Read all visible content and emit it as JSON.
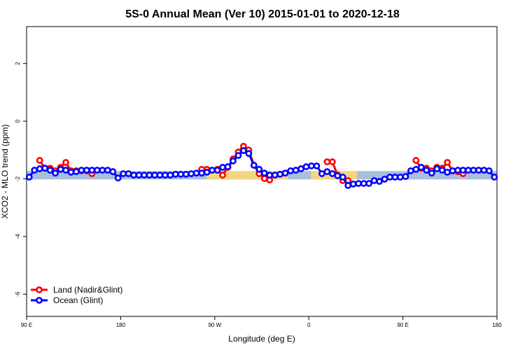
{
  "chart_data": {
    "type": "line",
    "title": "5S-0 Annual Mean (Ver 10)   2015-01-01 to 2020-12-18",
    "x_label": "Longitude (deg E)",
    "y_label": "XCO2 - MLO trend (ppm)",
    "xlim": [
      90,
      540
    ],
    "ylim": [
      -6.77,
      3.28
    ],
    "xticks": [
      {
        "value": 90,
        "label": "90 E"
      },
      180,
      {
        "value": 270,
        "label": "90 W"
      },
      {
        "value": 360,
        "label": "0"
      },
      {
        "value": 450,
        "label": "90 E"
      },
      {
        "value": 540,
        "label": "180"
      }
    ],
    "yticks": [
      -6,
      -4,
      -2,
      0,
      2
    ],
    "legend": "bottomleft",
    "bands": [
      {
        "color": "#a9bfdc",
        "xlim": [
          90,
          540
        ],
        "ylim": [
          -2.02,
          -1.73
        ]
      },
      {
        "color": "#f3d77c",
        "xlim": [
          262,
          340
        ],
        "ylim": [
          -2.02,
          -1.73
        ]
      },
      {
        "color": "#f3d77c",
        "xlim": [
          362,
          406
        ],
        "ylim": [
          -2.02,
          -1.73
        ]
      }
    ],
    "x": [
      92.5,
      97.5,
      102.5,
      107.5,
      112.5,
      117.5,
      122.5,
      127.5,
      132.5,
      137.5,
      142.5,
      147.5,
      152.5,
      157.5,
      162.5,
      167.5,
      172.5,
      177.5,
      182.5,
      187.5,
      192.5,
      197.5,
      202.5,
      207.5,
      212.5,
      217.5,
      222.5,
      227.5,
      232.5,
      237.5,
      242.5,
      247.5,
      252.5,
      257.5,
      262.5,
      267.5,
      272.5,
      277.5,
      282.5,
      287.5,
      292.5,
      297.5,
      302.5,
      307.5,
      312.5,
      317.5,
      322.5,
      327.5,
      332.5,
      337.5,
      342.5,
      347.5,
      352.5,
      357.5,
      362.5,
      367.5,
      372.5,
      377.5,
      382.5,
      387.5,
      392.5,
      397.5,
      402.5,
      407.5,
      412.5,
      417.5,
      422.5,
      427.5,
      432.5,
      437.5,
      442.5,
      447.5,
      452.5,
      457.5,
      462.5,
      467.5,
      472.5,
      477.5,
      482.5,
      487.5,
      492.5,
      497.5,
      502.5,
      507.5,
      512.5,
      517.5,
      522.5,
      527.5,
      532.5,
      537.5
    ],
    "series": [
      {
        "name": "Land (Nadir&Glint)",
        "color": "#ff0000",
        "values": [
          null,
          null,
          -1.36,
          -1.63,
          -1.63,
          -1.72,
          -1.6,
          -1.43,
          -1.72,
          -1.72,
          -1.72,
          -1.72,
          -1.82,
          null,
          null,
          null,
          null,
          null,
          null,
          null,
          null,
          null,
          null,
          null,
          null,
          null,
          null,
          null,
          null,
          null,
          null,
          null,
          null,
          -1.67,
          -1.67,
          -1.7,
          -1.67,
          -1.87,
          -1.6,
          -1.31,
          -1.07,
          -0.87,
          -1.0,
          -1.53,
          -1.82,
          -1.99,
          -2.04,
          null,
          null,
          null,
          null,
          null,
          null,
          null,
          null,
          null,
          null,
          -1.41,
          -1.41,
          -1.87,
          -2.06,
          -2.06,
          null,
          null,
          null,
          null,
          null,
          null,
          null,
          null,
          null,
          null,
          null,
          null,
          -1.36,
          -1.63,
          -1.63,
          -1.72,
          -1.6,
          -1.63,
          -1.43,
          -1.72,
          -1.75,
          -1.82,
          null,
          null,
          null,
          null,
          null,
          null
        ]
      },
      {
        "name": "Ocean (Glint)",
        "color": "#0000ff",
        "values": [
          -1.94,
          -1.7,
          -1.65,
          -1.63,
          -1.7,
          -1.8,
          -1.67,
          -1.7,
          -1.77,
          -1.75,
          -1.7,
          -1.7,
          -1.7,
          -1.7,
          -1.7,
          -1.7,
          -1.75,
          -1.97,
          -1.82,
          -1.82,
          -1.87,
          -1.87,
          -1.87,
          -1.87,
          -1.87,
          -1.87,
          -1.87,
          -1.87,
          -1.84,
          -1.84,
          -1.84,
          -1.82,
          -1.8,
          -1.8,
          -1.77,
          -1.7,
          -1.7,
          -1.6,
          -1.58,
          -1.38,
          -1.19,
          -1.02,
          -1.12,
          -1.53,
          -1.67,
          -1.8,
          -1.87,
          -1.87,
          -1.84,
          -1.8,
          -1.72,
          -1.7,
          -1.65,
          -1.58,
          -1.55,
          -1.55,
          -1.82,
          -1.75,
          -1.82,
          -1.89,
          -1.94,
          -2.23,
          -2.18,
          -2.16,
          -2.16,
          -2.16,
          -2.06,
          -2.09,
          -2.01,
          -1.94,
          -1.94,
          -1.94,
          -1.92,
          -1.72,
          -1.67,
          -1.6,
          -1.7,
          -1.8,
          -1.65,
          -1.7,
          -1.77,
          -1.72,
          -1.7,
          -1.7,
          -1.7,
          -1.7,
          -1.7,
          -1.7,
          -1.72,
          -1.94
        ]
      }
    ]
  }
}
